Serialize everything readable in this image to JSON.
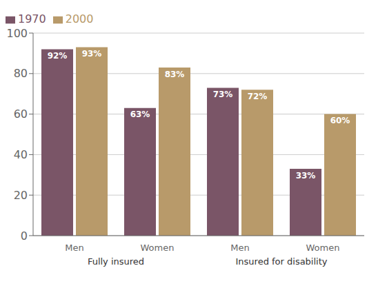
{
  "chart_data": {
    "type": "bar",
    "categories": [
      "Men",
      "Women",
      "Men",
      "Women"
    ],
    "annotations": [
      "Fully insured",
      "Insured for disability"
    ],
    "series": [
      {
        "name": "1970",
        "color": "#7a5567",
        "values": [
          92,
          63,
          73,
          33
        ],
        "value_labels": [
          "92%",
          "63%",
          "73%",
          "33%"
        ]
      },
      {
        "name": "2000",
        "color": "#b89a6a",
        "values": [
          93,
          83,
          72,
          60
        ],
        "value_labels": [
          "93%",
          "83%",
          "72%",
          "60%"
        ]
      }
    ],
    "ylim": [
      0,
      100
    ],
    "yticks": [
      0,
      20,
      40,
      60,
      80,
      100
    ],
    "grid": true,
    "legend": "upper left",
    "data_labels": true
  }
}
